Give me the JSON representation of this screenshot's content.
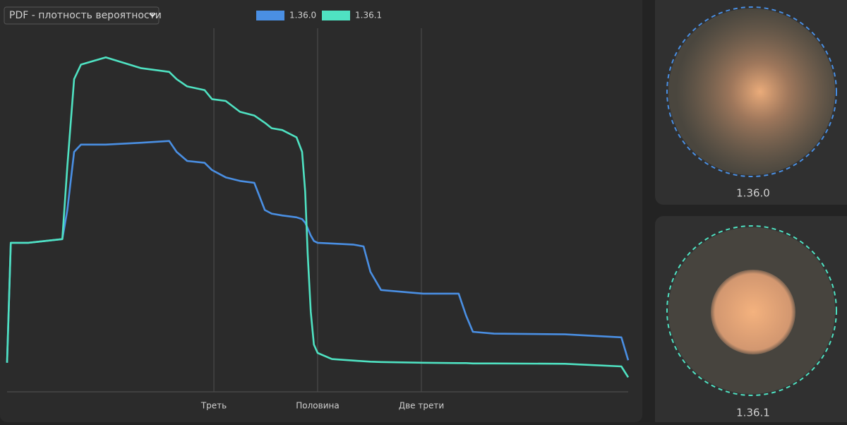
{
  "dropdown": {
    "label": "PDF - плотность вероятности"
  },
  "chart_data": {
    "type": "line",
    "x": [
      0,
      0.006,
      0.034,
      0.089,
      0.097,
      0.108,
      0.119,
      0.159,
      0.216,
      0.261,
      0.273,
      0.29,
      0.318,
      0.33,
      0.352,
      0.375,
      0.398,
      0.415,
      0.426,
      0.443,
      0.466,
      0.475,
      0.48,
      0.484,
      0.489,
      0.494,
      0.5,
      0.523,
      0.557,
      0.574,
      0.585,
      0.602,
      0.67,
      0.727,
      0.739,
      0.75,
      0.784,
      0.898,
      0.989,
      1
    ],
    "series": [
      {
        "name": "1.36.0",
        "color": "#4a8fe3",
        "values": [
          8,
          41,
          41,
          42,
          50,
          66,
          68,
          68,
          68.5,
          69,
          66,
          63.5,
          63,
          61,
          59,
          58,
          57.5,
          50,
          49,
          48.5,
          48,
          47.5,
          46.5,
          45,
          43,
          41.5,
          41,
          40.8,
          40.5,
          40,
          33,
          28,
          27,
          27,
          21,
          16.5,
          16,
          15.8,
          15,
          8.7
        ]
      },
      {
        "name": "1.36.1",
        "color": "#4fe2c2",
        "values": [
          8,
          41,
          41,
          42,
          62,
          86,
          90,
          92,
          89,
          88,
          86,
          84,
          83,
          80.5,
          80,
          77,
          76,
          74,
          72.5,
          72,
          70,
          66,
          55,
          38,
          22,
          13,
          10.7,
          9,
          8.6,
          8.4,
          8.3,
          8.2,
          8,
          7.9,
          7.9,
          7.8,
          7.8,
          7.7,
          7,
          4
        ]
      }
    ],
    "xlim": [
      0,
      1
    ],
    "ylim": [
      0,
      100
    ],
    "xticks": [
      {
        "value": 0.333,
        "label": "Треть"
      },
      {
        "value": 0.5,
        "label": "Половина"
      },
      {
        "value": 0.667,
        "label": "Две трети"
      }
    ],
    "grid": true
  },
  "panels": [
    {
      "label": "1.36.0"
    },
    {
      "label": "1.36.1"
    }
  ]
}
